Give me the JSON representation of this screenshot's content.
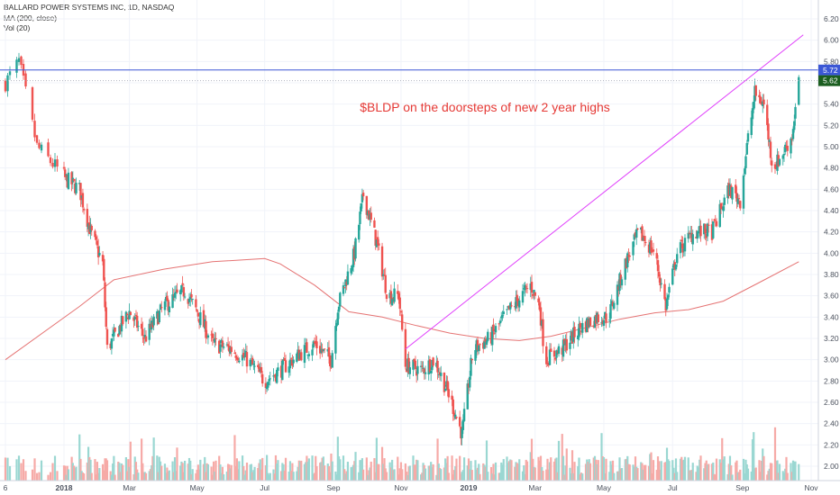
{
  "chart_data": {
    "type": "candlestick",
    "legend": [
      "BALLARD POWER SYSTEMS INC, 1D, NASDAQ",
      "MA (200, close)",
      "Vol (20)"
    ],
    "annotation": "$BLDP on the doorsteps of new 2 year highs",
    "y_ticks": [
      "2.00",
      "2.20",
      "2.40",
      "2.60",
      "2.80",
      "3.00",
      "3.20",
      "3.40",
      "3.60",
      "3.80",
      "4.00",
      "4.20",
      "4.40",
      "4.60",
      "4.80",
      "5.00",
      "5.20",
      "5.40",
      "5.60",
      "5.80",
      "6.00",
      "6.20"
    ],
    "ylim": [
      1.9,
      6.3
    ],
    "x_ticks": [
      "6",
      "2018",
      "Mar",
      "May",
      "Jul",
      "Sep",
      "Nov",
      "2019",
      "Mar",
      "May",
      "Jul",
      "Sep",
      "Nov"
    ],
    "resistance_level": 5.72,
    "resistance_label": "5.72",
    "last_price": 5.62,
    "last_price_label": "5.62",
    "trendline": [
      {
        "date": "2018-11-05",
        "price": 3.1
      },
      {
        "date": "2019-10-25",
        "price": 6.05
      }
    ],
    "price_path": [
      [
        "2017-12-06",
        5.6
      ],
      [
        "2017-12-12",
        5.8
      ],
      [
        "2017-12-20",
        5.0
      ],
      [
        "2018-01-02",
        4.7
      ],
      [
        "2018-01-15",
        4.6
      ],
      [
        "2018-01-25",
        4.2
      ],
      [
        "2018-02-05",
        3.9
      ],
      [
        "2018-02-09",
        3.1
      ],
      [
        "2018-02-20",
        3.3
      ],
      [
        "2018-03-01",
        3.45
      ],
      [
        "2018-03-15",
        3.2
      ],
      [
        "2018-04-01",
        3.5
      ],
      [
        "2018-04-20",
        3.65
      ],
      [
        "2018-05-01",
        3.45
      ],
      [
        "2018-05-15",
        3.15
      ],
      [
        "2018-06-01",
        3.1
      ],
      [
        "2018-06-15",
        3.0
      ],
      [
        "2018-07-01",
        2.8
      ],
      [
        "2018-07-15",
        2.9
      ],
      [
        "2018-08-01",
        3.05
      ],
      [
        "2018-08-15",
        3.15
      ],
      [
        "2018-08-30",
        3.0
      ],
      [
        "2018-09-05",
        3.5
      ],
      [
        "2018-09-20",
        4.0
      ],
      [
        "2018-09-28",
        4.55
      ],
      [
        "2018-10-10",
        4.1
      ],
      [
        "2018-10-20",
        3.6
      ],
      [
        "2018-10-30",
        3.6
      ],
      [
        "2018-11-05",
        2.95
      ],
      [
        "2018-11-20",
        2.9
      ],
      [
        "2018-12-01",
        3.0
      ],
      [
        "2018-12-15",
        2.65
      ],
      [
        "2018-12-26",
        2.3
      ],
      [
        "2019-01-05",
        3.1
      ],
      [
        "2019-01-20",
        3.2
      ],
      [
        "2019-02-05",
        3.45
      ],
      [
        "2019-02-25",
        3.7
      ],
      [
        "2019-03-05",
        3.5
      ],
      [
        "2019-03-10",
        3.0
      ],
      [
        "2019-03-25",
        3.1
      ],
      [
        "2019-04-10",
        3.3
      ],
      [
        "2019-04-25",
        3.4
      ],
      [
        "2019-05-05",
        3.4
      ],
      [
        "2019-05-20",
        3.9
      ],
      [
        "2019-06-01",
        4.2
      ],
      [
        "2019-06-15",
        4.0
      ],
      [
        "2019-06-25",
        3.5
      ],
      [
        "2019-07-05",
        4.0
      ],
      [
        "2019-07-20",
        4.2
      ],
      [
        "2019-08-05",
        4.2
      ],
      [
        "2019-08-20",
        4.6
      ],
      [
        "2019-08-30",
        4.5
      ],
      [
        "2019-09-05",
        5.0
      ],
      [
        "2019-09-12",
        5.5
      ],
      [
        "2019-09-20",
        5.4
      ],
      [
        "2019-09-28",
        4.8
      ],
      [
        "2019-10-05",
        4.9
      ],
      [
        "2019-10-15",
        5.1
      ],
      [
        "2019-10-21",
        5.62
      ]
    ],
    "ma200_path": [
      [
        "2017-12-06",
        3.0
      ],
      [
        "2018-01-15",
        3.5
      ],
      [
        "2018-02-15",
        3.75
      ],
      [
        "2018-04-01",
        3.85
      ],
      [
        "2018-05-15",
        3.92
      ],
      [
        "2018-07-01",
        3.95
      ],
      [
        "2018-07-15",
        3.9
      ],
      [
        "2018-08-15",
        3.7
      ],
      [
        "2018-09-15",
        3.45
      ],
      [
        "2018-10-15",
        3.4
      ],
      [
        "2018-11-15",
        3.32
      ],
      [
        "2018-12-15",
        3.25
      ],
      [
        "2019-01-15",
        3.2
      ],
      [
        "2019-02-15",
        3.18
      ],
      [
        "2019-03-15",
        3.22
      ],
      [
        "2019-04-15",
        3.3
      ],
      [
        "2019-05-15",
        3.38
      ],
      [
        "2019-06-15",
        3.44
      ],
      [
        "2019-07-15",
        3.47
      ],
      [
        "2019-08-15",
        3.55
      ],
      [
        "2019-09-15",
        3.72
      ],
      [
        "2019-10-21",
        3.92
      ]
    ],
    "colors": {
      "up": "#26a69a",
      "down": "#ef5350",
      "ma": "#e57373",
      "trendline": "#e040fb",
      "resistance": "#3b57d6",
      "last_price": "#1b5e20",
      "annotation": "#e53935",
      "volume_up": "#9ad7d2",
      "volume_down": "#f6aaa7"
    }
  }
}
